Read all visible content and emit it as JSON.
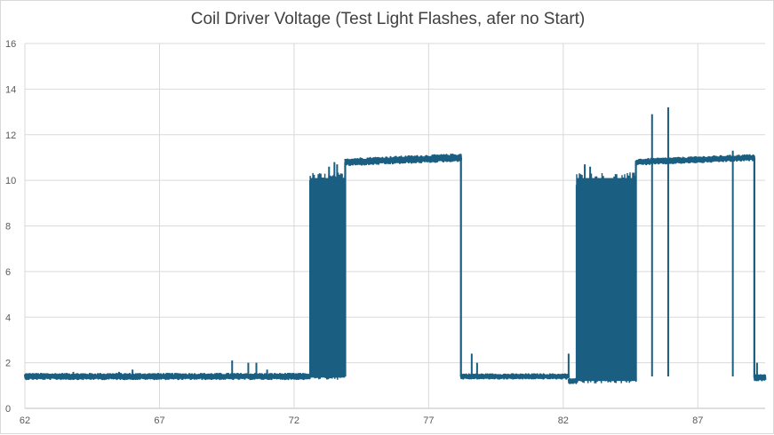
{
  "chart_data": {
    "type": "line",
    "title": "Coil Driver Voltage (Test Light Flashes, afer no Start)",
    "xlabel": "",
    "ylabel": "",
    "xlim": [
      62,
      89.5
    ],
    "ylim": [
      0,
      16
    ],
    "x_ticks": [
      62,
      67,
      72,
      77,
      82,
      87
    ],
    "y_ticks": [
      0,
      2,
      4,
      6,
      8,
      10,
      12,
      14,
      16
    ],
    "grid": true,
    "legend": "none",
    "series_color": "#1a5e82",
    "series": [
      {
        "segments": [
          {
            "kind": "noise",
            "x_start": 62.0,
            "x_end": 72.6,
            "level": 1.4,
            "amplitude": 0.12
          },
          {
            "kind": "spikes",
            "points": [
              [
                63.8,
                1.6
              ],
              [
                65.5,
                1.6
              ],
              [
                66.0,
                1.7
              ],
              [
                69.7,
                2.1
              ],
              [
                70.3,
                2.0
              ],
              [
                70.6,
                2.0
              ],
              [
                71.0,
                1.7
              ]
            ]
          },
          {
            "kind": "oscillation",
            "x_start": 72.6,
            "x_end": 73.9,
            "low": 1.35,
            "high": 10.1
          },
          {
            "kind": "spikes",
            "points": [
              [
                73.3,
                10.6
              ],
              [
                73.5,
                10.8
              ],
              [
                73.6,
                10.7
              ]
            ]
          },
          {
            "kind": "noise",
            "x_start": 73.9,
            "x_end": 78.2,
            "level_start": 10.8,
            "level_end": 11.0,
            "amplitude": 0.15
          },
          {
            "kind": "noise",
            "x_start": 78.2,
            "x_end": 82.2,
            "level": 1.4,
            "amplitude": 0.1
          },
          {
            "kind": "spikes",
            "points": [
              [
                78.6,
                2.4
              ],
              [
                78.8,
                2.0
              ],
              [
                82.2,
                2.4
              ]
            ]
          },
          {
            "kind": "noise",
            "x_start": 82.2,
            "x_end": 82.5,
            "level": 1.2,
            "amplitude": 0.1
          },
          {
            "kind": "oscillation",
            "x_start": 82.5,
            "x_end": 84.7,
            "low": 1.2,
            "high": 10.1
          },
          {
            "kind": "spikes",
            "points": [
              [
                82.8,
                10.7
              ],
              [
                83.0,
                10.6
              ]
            ]
          },
          {
            "kind": "noise",
            "x_start": 84.7,
            "x_end": 89.1,
            "level_start": 10.8,
            "level_end": 11.0,
            "amplitude": 0.12
          },
          {
            "kind": "spikes",
            "points": [
              [
                85.3,
                12.9
              ],
              [
                85.9,
                13.2
              ],
              [
                88.3,
                11.3
              ]
            ]
          },
          {
            "kind": "noise",
            "x_start": 89.1,
            "x_end": 89.5,
            "level": 1.35,
            "amplitude": 0.12
          },
          {
            "kind": "spikes",
            "points": [
              [
                89.2,
                2.0
              ]
            ]
          }
        ]
      }
    ]
  }
}
